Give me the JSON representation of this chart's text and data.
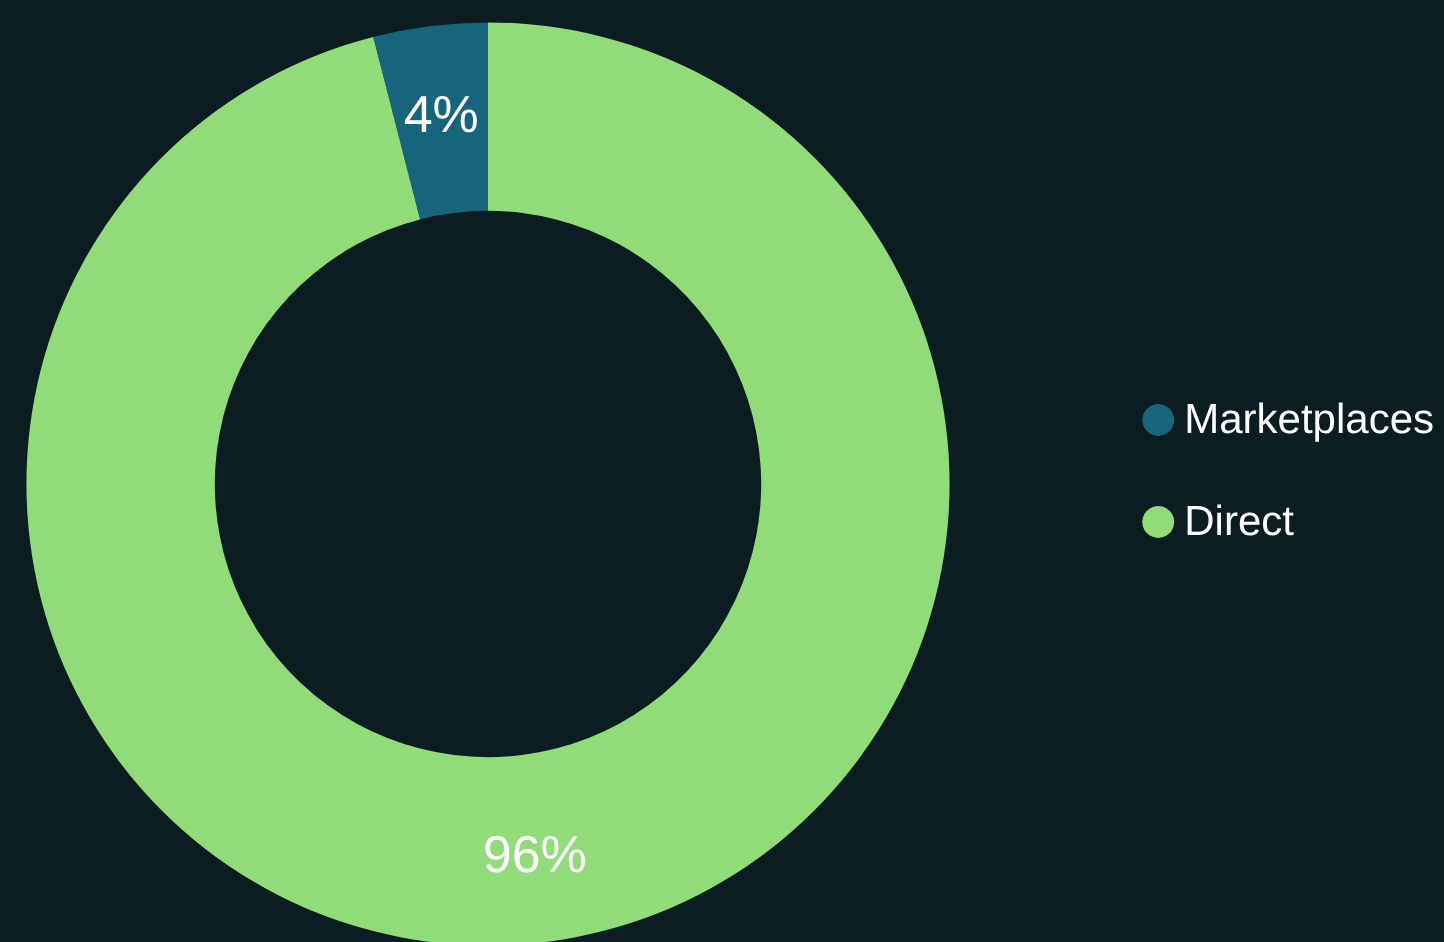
{
  "chart_data": {
    "type": "donut",
    "categories": [
      "Marketplaces",
      "Direct"
    ],
    "values": [
      4,
      96
    ],
    "colors": [
      "#17657c",
      "#8fdc78"
    ],
    "value_labels": [
      "4%",
      "96%"
    ],
    "legend": "right"
  }
}
